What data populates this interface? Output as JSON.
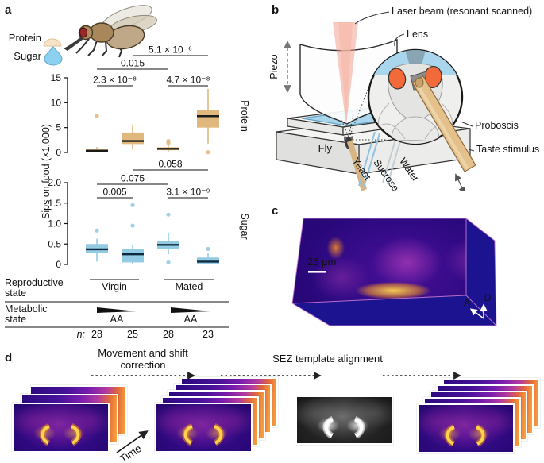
{
  "panel_labels": {
    "a": "a",
    "b": "b",
    "c": "c",
    "d": "d"
  },
  "chart_data": {
    "type": "boxplot",
    "ylabel": "Sips on food (×1,000)",
    "legend": {
      "protein": "Protein",
      "sugar": "Sugar"
    },
    "subpanels": [
      {
        "name": "Protein",
        "color": "#e0b87e",
        "median_color": "#1a1a1a",
        "ylim": [
          0,
          15
        ],
        "ytick_values": [
          0,
          5,
          10,
          15
        ],
        "yticks": [
          "0",
          "5",
          "10",
          "15"
        ],
        "boxes": [
          {
            "lo": 0.05,
            "q1": 0.1,
            "median": 0.35,
            "q3": 0.65,
            "hi": 1.1,
            "outliers": [
              7.3
            ]
          },
          {
            "lo": 0.8,
            "q1": 1.7,
            "median": 2.3,
            "q3": 4.0,
            "hi": 5.6,
            "outliers": []
          },
          {
            "lo": 0.2,
            "q1": 0.45,
            "median": 0.75,
            "q3": 1.05,
            "hi": 1.45,
            "outliers": [
              2.3,
              1.9
            ]
          },
          {
            "lo": 1.8,
            "q1": 5.0,
            "median": 7.3,
            "q3": 8.6,
            "hi": 12.8,
            "outliers": [
              0.05
            ]
          }
        ],
        "significance": [
          {
            "a": 1,
            "b": 3,
            "p": "5.1 × 10⁻⁶",
            "tier": 3
          },
          {
            "a": 0,
            "b": 2,
            "p": "0.015",
            "tier": 2
          },
          {
            "a": 0,
            "b": 1,
            "p": "2.3 × 10⁻⁸",
            "tier": 1
          },
          {
            "a": 2,
            "b": 3,
            "p": "4.7 × 10⁻⁸",
            "tier": 1
          }
        ]
      },
      {
        "name": "Sugar",
        "color": "#93cbe4",
        "median_color": "#0d2b3e",
        "ylim": [
          0,
          2
        ],
        "ytick_values": [
          0,
          0.5,
          1.0,
          1.5,
          2.0
        ],
        "yticks": [
          "0",
          "0.5",
          "1.0",
          "1.5",
          "2.0"
        ],
        "boxes": [
          {
            "lo": 0.07,
            "q1": 0.28,
            "median": 0.37,
            "q3": 0.5,
            "hi": 0.63,
            "outliers": [
              0.83
            ]
          },
          {
            "lo": 0.0,
            "q1": 0.05,
            "median": 0.25,
            "q3": 0.37,
            "hi": 0.48,
            "outliers": [
              0.95,
              1.45
            ]
          },
          {
            "lo": 0.25,
            "q1": 0.38,
            "median": 0.48,
            "q3": 0.57,
            "hi": 0.78,
            "outliers": [
              1.22,
              0.05
            ]
          },
          {
            "lo": 0.0,
            "q1": 0.02,
            "median": 0.07,
            "q3": 0.17,
            "hi": 0.28,
            "outliers": [
              0.38
            ]
          }
        ],
        "significance": [
          {
            "a": 1,
            "b": 3,
            "p": "0.058",
            "tier": 3
          },
          {
            "a": 0,
            "b": 2,
            "p": "0.075",
            "tier": 2
          },
          {
            "a": 0,
            "b": 1,
            "p": "0.005",
            "tier": 1
          },
          {
            "a": 2,
            "b": 3,
            "p": "3.1 × 10⁻⁹",
            "tier": 1
          }
        ]
      }
    ],
    "footer": {
      "reproductive_label": [
        "Reproductive",
        "state"
      ],
      "reproductive_groups": [
        "Virgin",
        "Mated"
      ],
      "metabolic_label": [
        "Metabolic",
        "state"
      ],
      "metabolic_value": "AA",
      "n_label": "n:",
      "n_values": [
        "28",
        "25",
        "28",
        "23"
      ]
    }
  },
  "panel_b": {
    "labels": {
      "laser_beam": "Laser beam (resonant scanned)",
      "lens": "Lens",
      "piezo": "Piezo",
      "fly": "Fly",
      "proboscis": "Proboscis",
      "taste_stimulus": "Taste stimulus",
      "yeast": "Yeast",
      "sucrose": "Sucrose",
      "water": "Water"
    }
  },
  "panel_c": {
    "scale_bar": "25 μm",
    "axes": {
      "a": "A",
      "d": "D"
    }
  },
  "panel_d": {
    "step1": "Movement and shift correction",
    "step2": "SEZ template alignment",
    "time_label": "Time"
  },
  "colors": {
    "protein_box": "#e0b87e",
    "sugar_box": "#93cbe4",
    "laser_beam": "#f29a86",
    "bath_water": "#a9d6ec",
    "taste_rod": "#e4c08b",
    "eye": "#f26a3a",
    "fluoro_background": "#2a0878",
    "fluoro_hot": "#fcd34d",
    "volume_side": "#1c1390"
  }
}
